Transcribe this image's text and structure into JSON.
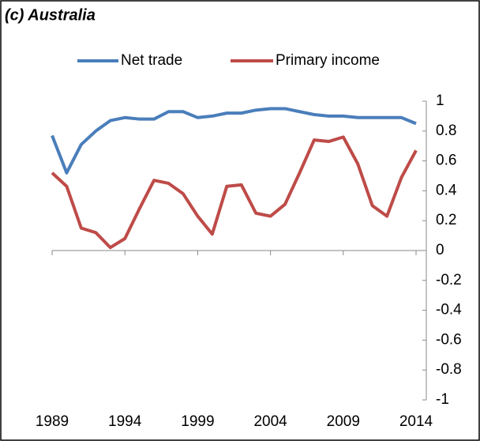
{
  "chart_data": {
    "type": "line",
    "title": "(c) Australia",
    "x": [
      1989,
      1990,
      1991,
      1992,
      1993,
      1994,
      1995,
      1996,
      1997,
      1998,
      1999,
      2000,
      2001,
      2002,
      2003,
      2004,
      2005,
      2006,
      2007,
      2008,
      2009,
      2010,
      2011,
      2012,
      2013,
      2014
    ],
    "series": [
      {
        "name": "Net trade",
        "color": "#4a7ebb",
        "values": [
          0.77,
          0.52,
          0.71,
          0.8,
          0.87,
          0.89,
          0.88,
          0.88,
          0.93,
          0.93,
          0.89,
          0.9,
          0.92,
          0.92,
          0.94,
          0.95,
          0.95,
          0.93,
          0.91,
          0.9,
          0.9,
          0.89,
          0.89,
          0.89,
          0.89,
          0.85
        ]
      },
      {
        "name": "Primary income",
        "color": "#be4b48",
        "values": [
          0.52,
          0.43,
          0.15,
          0.12,
          0.02,
          0.08,
          0.28,
          0.47,
          0.45,
          0.38,
          0.23,
          0.11,
          0.43,
          0.44,
          0.25,
          0.23,
          0.31,
          0.52,
          0.74,
          0.73,
          0.76,
          0.58,
          0.3,
          0.23,
          0.49,
          0.67
        ]
      }
    ],
    "xlim": [
      1989,
      2014
    ],
    "xticks": [
      1989,
      1994,
      1999,
      2004,
      2009,
      2014
    ],
    "ylim": [
      -1,
      1
    ],
    "yticks": [
      -1,
      -0.8,
      -0.6,
      -0.4,
      -0.2,
      0,
      0.2,
      0.4,
      0.6,
      0.8,
      1
    ],
    "legend": "top"
  }
}
